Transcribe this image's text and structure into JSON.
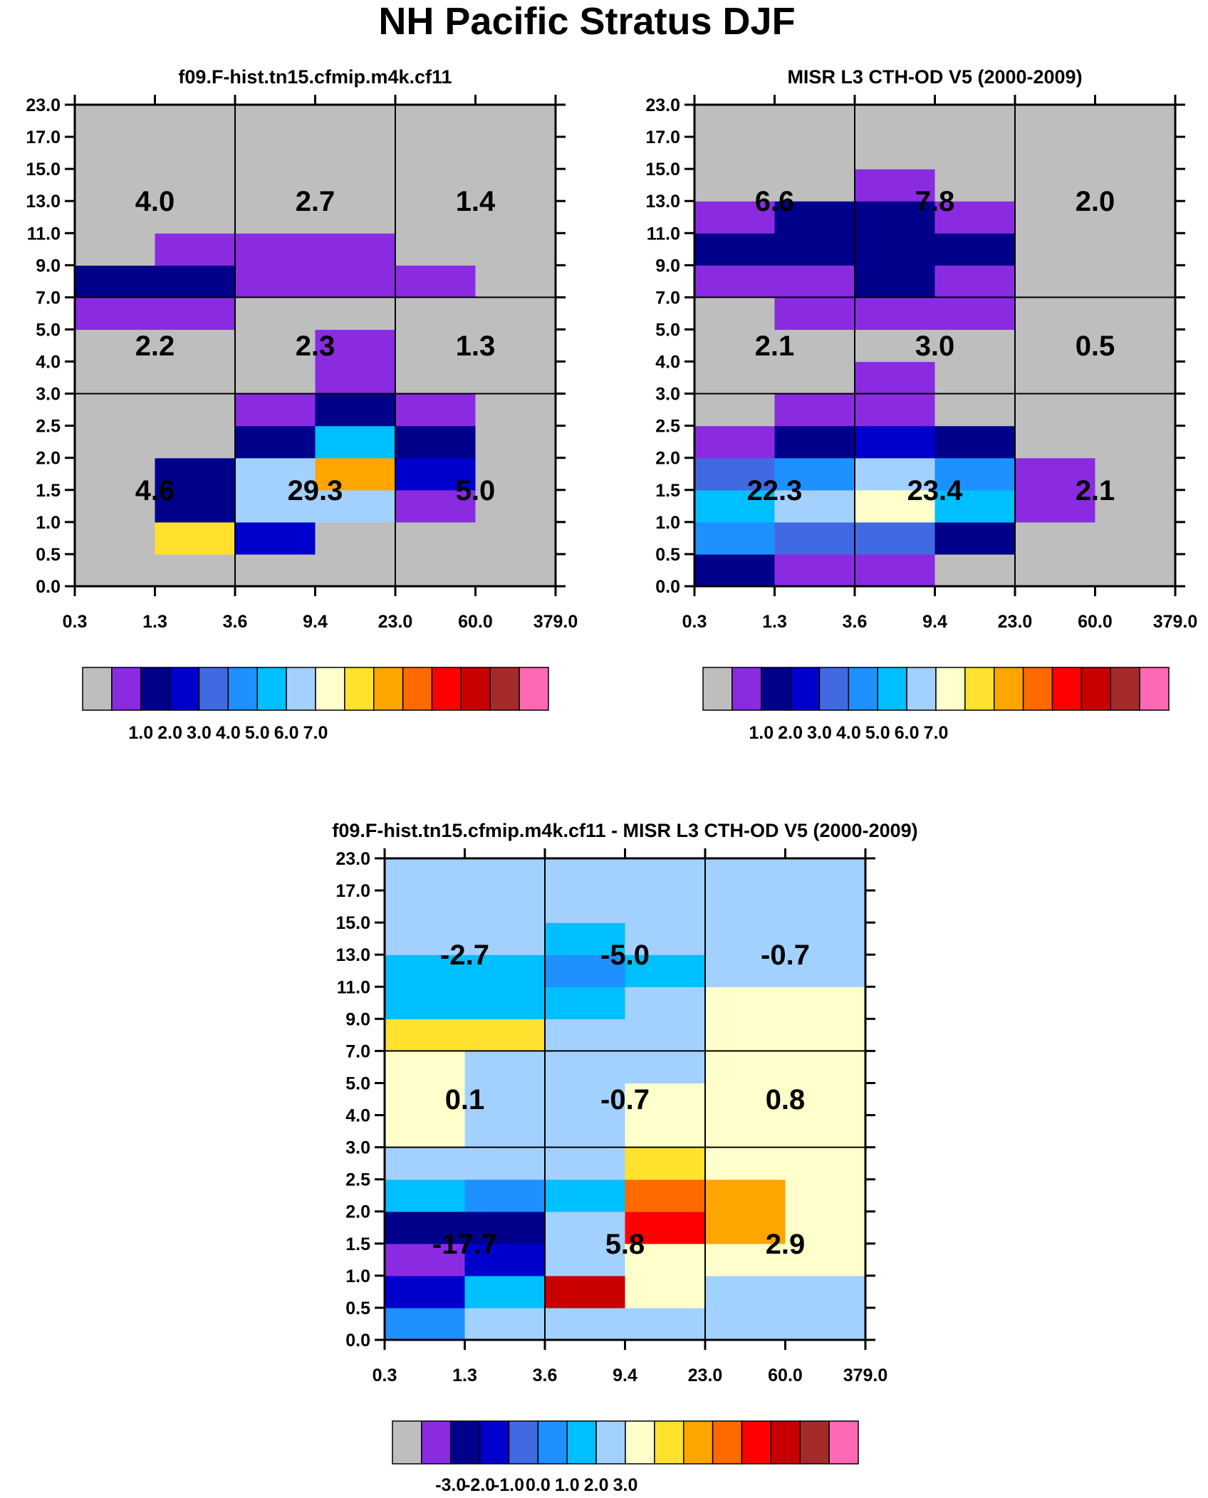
{
  "title": "NH Pacific Stratus DJF",
  "colors": {
    "missing": "#bebebe",
    "palette": [
      "#bebebe",
      "#8a2be2",
      "#00008b",
      "#0000cd",
      "#4169e1",
      "#1e90ff",
      "#00bfff",
      "#a3d1ff",
      "#ffffcc",
      "#ffe12e",
      "#ffa500",
      "#ff6a00",
      "#ff0000",
      "#c80000",
      "#a52a2a",
      "#ff69b4"
    ]
  },
  "axes": {
    "y_ticks": [
      "0.0",
      "0.5",
      "1.0",
      "1.5",
      "2.0",
      "2.5",
      "3.0",
      "4.0",
      "5.0",
      "7.0",
      "9.0",
      "11.0",
      "13.0",
      "15.0",
      "17.0",
      "23.0"
    ],
    "x_ticks": [
      "0.3",
      "1.3",
      "3.6",
      "9.4",
      "23.0",
      "60.0",
      "379.0"
    ]
  },
  "colorbars": {
    "abs_labels": [
      "1.0",
      "2.0",
      "3.0",
      "4.0",
      "5.0",
      "6.0",
      "7.0"
    ],
    "diff_labels": [
      "-3.0",
      "-2.0",
      "-1.0",
      "0.0",
      "1.0",
      "2.0",
      "3.0"
    ]
  },
  "chart_data": [
    {
      "type": "heatmap",
      "title": "f09.F-hist.tn15.cfmip.m4k.cf11",
      "description_rows": "grid[r][c]: r=0 is bottom CTH bin (0.0-0.5 km), c=0 is first optical depth bin (0.3-1.3); values are palette color indices (0 = below 0.5 / gray)",
      "grid": [
        [
          0,
          0,
          0,
          0,
          0,
          0
        ],
        [
          0,
          9,
          3,
          0,
          0,
          0
        ],
        [
          0,
          2,
          7,
          7,
          1,
          0
        ],
        [
          0,
          2,
          7,
          10,
          3,
          0
        ],
        [
          0,
          0,
          2,
          6,
          2,
          0
        ],
        [
          0,
          0,
          1,
          2,
          1,
          0
        ],
        [
          0,
          0,
          0,
          1,
          0,
          0
        ],
        [
          0,
          0,
          0,
          1,
          0,
          0
        ],
        [
          1,
          1,
          0,
          0,
          0,
          0
        ],
        [
          2,
          2,
          1,
          1,
          1,
          0
        ],
        [
          0,
          1,
          1,
          1,
          0,
          0
        ],
        [
          0,
          0,
          0,
          0,
          0,
          0
        ],
        [
          0,
          0,
          0,
          0,
          0,
          0
        ],
        [
          0,
          0,
          0,
          0,
          0,
          0
        ],
        [
          0,
          0,
          0,
          0,
          0,
          0
        ]
      ],
      "group_totals": [
        {
          "label": "4.0",
          "row": "high",
          "col": "thin"
        },
        {
          "label": "2.7",
          "row": "high",
          "col": "mid"
        },
        {
          "label": "1.4",
          "row": "high",
          "col": "thick"
        },
        {
          "label": "2.2",
          "row": "middle",
          "col": "thin"
        },
        {
          "label": "2.3",
          "row": "middle",
          "col": "mid"
        },
        {
          "label": "1.3",
          "row": "middle",
          "col": "thick"
        },
        {
          "label": "4.6",
          "row": "low",
          "col": "thin"
        },
        {
          "label": "29.3",
          "row": "low",
          "col": "mid"
        },
        {
          "label": "5.0",
          "row": "low",
          "col": "thick"
        }
      ]
    },
    {
      "type": "heatmap",
      "title": "MISR L3 CTH-OD V5 (2000-2009)",
      "grid": [
        [
          2,
          1,
          1,
          0,
          0,
          0
        ],
        [
          5,
          4,
          4,
          2,
          0,
          0
        ],
        [
          6,
          7,
          8,
          6,
          1,
          0
        ],
        [
          4,
          5,
          7,
          5,
          1,
          0
        ],
        [
          1,
          2,
          3,
          2,
          0,
          0
        ],
        [
          0,
          1,
          1,
          0,
          0,
          0
        ],
        [
          0,
          0,
          1,
          0,
          0,
          0
        ],
        [
          0,
          0,
          0,
          0,
          0,
          0
        ],
        [
          0,
          1,
          1,
          1,
          0,
          0
        ],
        [
          1,
          1,
          2,
          1,
          0,
          0
        ],
        [
          2,
          2,
          2,
          2,
          0,
          0
        ],
        [
          1,
          2,
          2,
          1,
          0,
          0
        ],
        [
          0,
          0,
          1,
          0,
          0,
          0
        ],
        [
          0,
          0,
          0,
          0,
          0,
          0
        ],
        [
          0,
          0,
          0,
          0,
          0,
          0
        ]
      ],
      "group_totals": [
        {
          "label": "6.6",
          "row": "high",
          "col": "thin"
        },
        {
          "label": "7.8",
          "row": "high",
          "col": "mid"
        },
        {
          "label": "2.0",
          "row": "high",
          "col": "thick"
        },
        {
          "label": "2.1",
          "row": "middle",
          "col": "thin"
        },
        {
          "label": "3.0",
          "row": "middle",
          "col": "mid"
        },
        {
          "label": "0.5",
          "row": "middle",
          "col": "thick"
        },
        {
          "label": "22.3",
          "row": "low",
          "col": "thin"
        },
        {
          "label": "23.4",
          "row": "low",
          "col": "mid"
        },
        {
          "label": "2.1",
          "row": "low",
          "col": "thick"
        }
      ]
    },
    {
      "type": "heatmap",
      "title": "f09.F-hist.tn15.cfmip.m4k.cf11 - MISR L3 CTH-OD V5 (2000-2009)",
      "grid": [
        [
          5,
          7,
          7,
          7,
          7,
          7
        ],
        [
          3,
          6,
          13,
          8,
          7,
          7
        ],
        [
          1,
          3,
          7,
          8,
          8,
          8
        ],
        [
          2,
          2,
          7,
          12,
          10,
          8
        ],
        [
          6,
          5,
          6,
          11,
          10,
          8
        ],
        [
          7,
          7,
          7,
          9,
          8,
          8
        ],
        [
          8,
          7,
          7,
          8,
          8,
          8
        ],
        [
          8,
          7,
          7,
          8,
          8,
          8
        ],
        [
          8,
          7,
          7,
          7,
          8,
          8
        ],
        [
          9,
          9,
          7,
          7,
          8,
          8
        ],
        [
          6,
          6,
          6,
          7,
          8,
          8
        ],
        [
          6,
          6,
          5,
          6,
          7,
          7
        ],
        [
          7,
          7,
          6,
          7,
          7,
          7
        ],
        [
          7,
          7,
          7,
          7,
          7,
          7
        ],
        [
          7,
          7,
          7,
          7,
          7,
          7
        ]
      ],
      "group_totals": [
        {
          "label": "-2.7",
          "row": "high",
          "col": "thin"
        },
        {
          "label": "-5.0",
          "row": "high",
          "col": "mid"
        },
        {
          "label": "-0.7",
          "row": "high",
          "col": "thick"
        },
        {
          "label": "0.1",
          "row": "middle",
          "col": "thin"
        },
        {
          "label": "-0.7",
          "row": "middle",
          "col": "mid"
        },
        {
          "label": "0.8",
          "row": "middle",
          "col": "thick"
        },
        {
          "label": "-17.7",
          "row": "low",
          "col": "thin"
        },
        {
          "label": "5.8",
          "row": "low",
          "col": "mid"
        },
        {
          "label": "2.9",
          "row": "low",
          "col": "thick"
        }
      ]
    }
  ]
}
